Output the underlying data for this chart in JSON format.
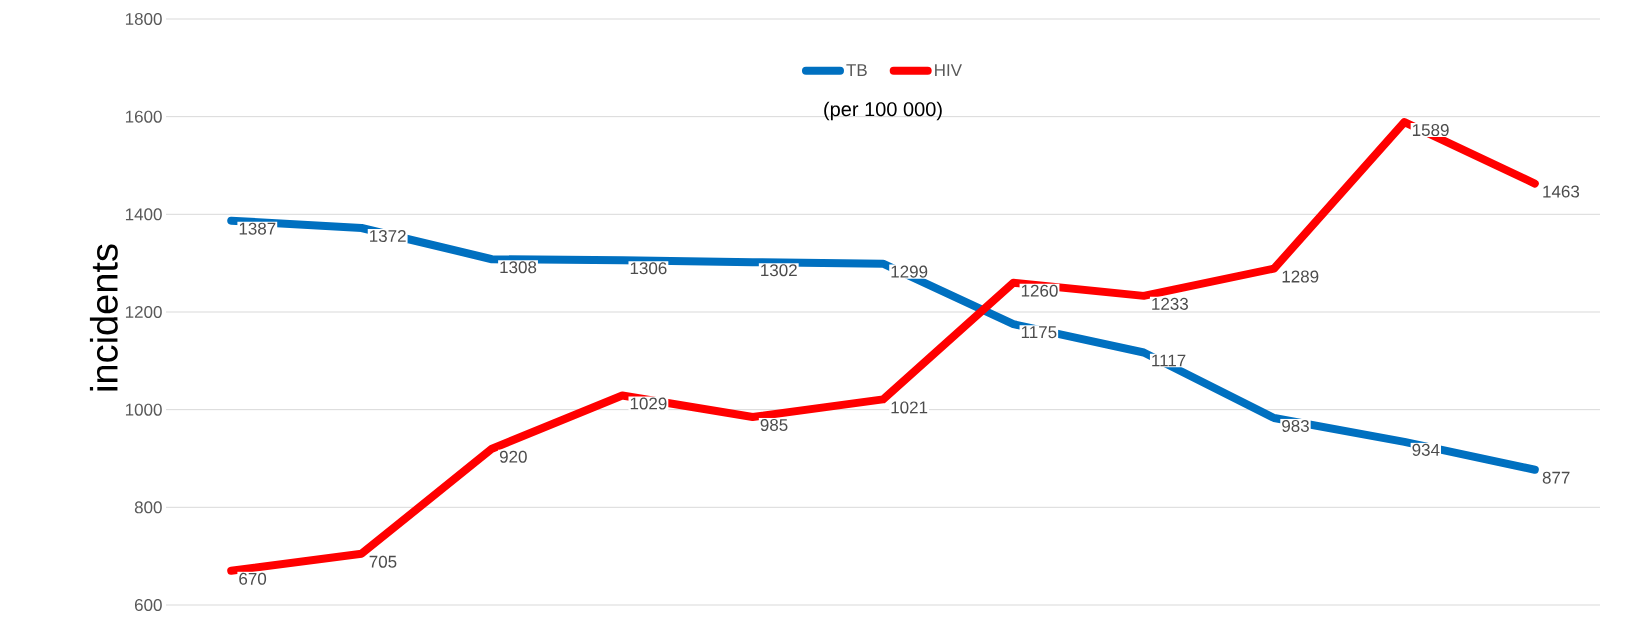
{
  "chart_data": {
    "type": "line",
    "subtitle": "(per 100 000)",
    "ylabel": "incidents",
    "categories": [
      null,
      null,
      null,
      null,
      null,
      null,
      null,
      null,
      null,
      null,
      null
    ],
    "series": [
      {
        "name": "TB",
        "color": "#0070c0",
        "values": [
          1387,
          1372,
          1308,
          1306,
          1302,
          1299,
          1175,
          1117,
          983,
          934,
          877
        ]
      },
      {
        "name": "HIV",
        "color": "#ff0000",
        "values": [
          670,
          705,
          920,
          1029,
          985,
          1021,
          1260,
          1233,
          1289,
          1589,
          1463
        ]
      }
    ],
    "ylim": [
      600,
      1800
    ],
    "yticks": [
      600,
      800,
      1000,
      1200,
      1400,
      1600,
      1800
    ],
    "grid": "y",
    "legend": "top",
    "data_labels": true,
    "tick_labels": "y",
    "marker": "none",
    "line_style": "solid"
  }
}
